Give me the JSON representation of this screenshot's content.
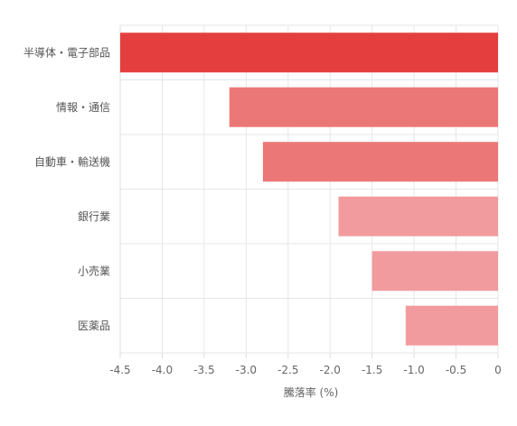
{
  "chart_data": {
    "type": "bar",
    "orientation": "horizontal",
    "categories": [
      "半導体・電子部品",
      "情報・通信",
      "自動車・輸送機",
      "銀行業",
      "小売業",
      "医薬品"
    ],
    "values": [
      -4.5,
      -3.2,
      -2.8,
      -1.9,
      -1.5,
      -1.1
    ],
    "bar_colors": [
      "#e53e3e",
      "#ec7777",
      "#ec7777",
      "#f29b9e",
      "#f29b9e",
      "#f29b9e"
    ],
    "xlabel": "騰落率 (%)",
    "ylabel": "",
    "xlim": [
      -4.5,
      0
    ],
    "xticks": [
      "-4.5",
      "-4.0",
      "-3.5",
      "-3.0",
      "-2.5",
      "-2.0",
      "-1.5",
      "-1.0",
      "-0.5",
      "0"
    ],
    "grid": true,
    "legend": "none"
  }
}
